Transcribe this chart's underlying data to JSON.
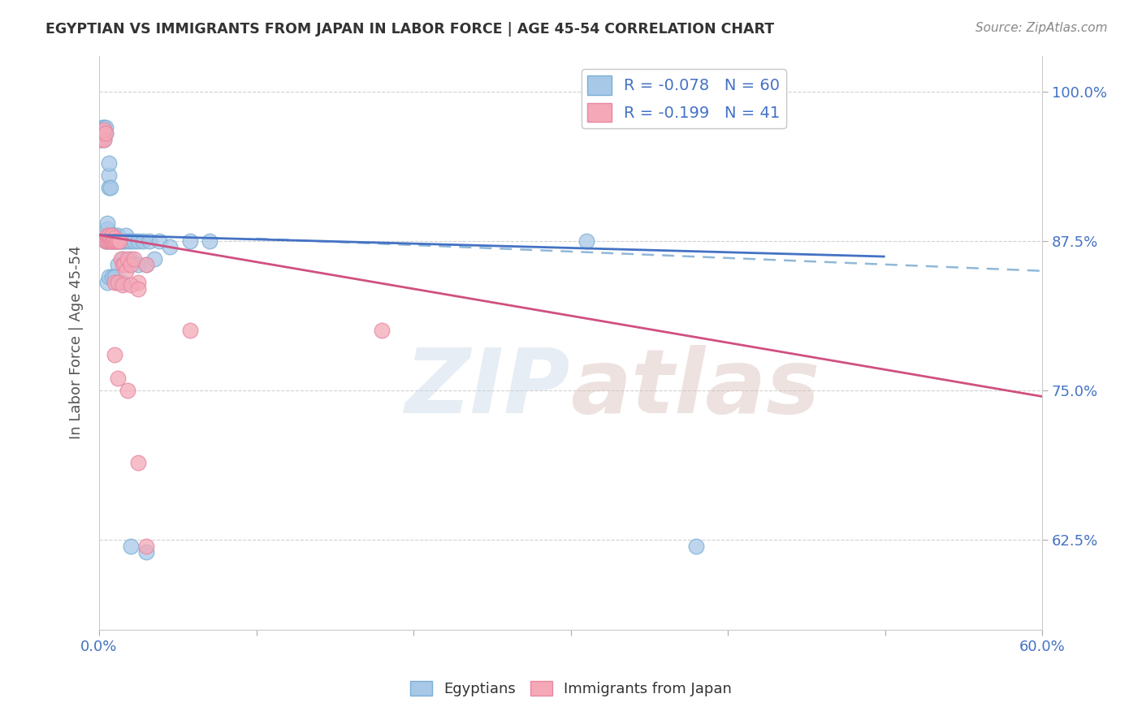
{
  "title": "EGYPTIAN VS IMMIGRANTS FROM JAPAN IN LABOR FORCE | AGE 45-54 CORRELATION CHART",
  "source": "Source: ZipAtlas.com",
  "ylabel": "In Labor Force | Age 45-54",
  "xlim": [
    0.0,
    0.6
  ],
  "ylim": [
    0.55,
    1.03
  ],
  "yticks": [
    0.625,
    0.75,
    0.875,
    1.0
  ],
  "ytick_labels": [
    "62.5%",
    "75.0%",
    "87.5%",
    "100.0%"
  ],
  "xticks": [
    0.0,
    0.1,
    0.2,
    0.3,
    0.4,
    0.5,
    0.6
  ],
  "xtick_labels": [
    "0.0%",
    "",
    "",
    "",
    "",
    "",
    "60.0%"
  ],
  "blue_R": -0.078,
  "blue_N": 60,
  "pink_R": -0.199,
  "pink_N": 41,
  "blue_color": "#a8c8e8",
  "pink_color": "#f4a8b8",
  "blue_edge_color": "#7aafd4",
  "pink_edge_color": "#e888a0",
  "blue_line_color": "#4472c4",
  "pink_line_color": "#d05080",
  "dashed_line_color": "#90b8d8",
  "axis_color": "#4472c4",
  "grid_color": "#cccccc",
  "background_color": "#ffffff",
  "blue_scatter_x": [
    0.001,
    0.002,
    0.002,
    0.003,
    0.003,
    0.003,
    0.004,
    0.004,
    0.004,
    0.005,
    0.005,
    0.005,
    0.005,
    0.006,
    0.006,
    0.006,
    0.007,
    0.007,
    0.007,
    0.008,
    0.008,
    0.009,
    0.009,
    0.01,
    0.01,
    0.011,
    0.012,
    0.012,
    0.013,
    0.014,
    0.015,
    0.016,
    0.017,
    0.018,
    0.02,
    0.022,
    0.025,
    0.028,
    0.032,
    0.038,
    0.012,
    0.015,
    0.018,
    0.02,
    0.025,
    0.03,
    0.035,
    0.045,
    0.058,
    0.07,
    0.005,
    0.006,
    0.008,
    0.01,
    0.012,
    0.015,
    0.02,
    0.03,
    0.31,
    0.38
  ],
  "blue_scatter_y": [
    0.96,
    0.962,
    0.97,
    0.96,
    0.965,
    0.97,
    0.965,
    0.875,
    0.97,
    0.875,
    0.88,
    0.885,
    0.89,
    0.92,
    0.93,
    0.94,
    0.875,
    0.88,
    0.92,
    0.875,
    0.88,
    0.875,
    0.88,
    0.875,
    0.88,
    0.875,
    0.875,
    0.88,
    0.875,
    0.875,
    0.875,
    0.875,
    0.88,
    0.875,
    0.875,
    0.875,
    0.875,
    0.875,
    0.875,
    0.875,
    0.855,
    0.86,
    0.855,
    0.86,
    0.855,
    0.855,
    0.86,
    0.87,
    0.875,
    0.875,
    0.84,
    0.845,
    0.845,
    0.845,
    0.84,
    0.84,
    0.62,
    0.615,
    0.875,
    0.62
  ],
  "pink_scatter_x": [
    0.001,
    0.002,
    0.003,
    0.003,
    0.004,
    0.004,
    0.005,
    0.005,
    0.006,
    0.006,
    0.007,
    0.007,
    0.008,
    0.008,
    0.009,
    0.01,
    0.01,
    0.011,
    0.012,
    0.013,
    0.014,
    0.015,
    0.016,
    0.017,
    0.018,
    0.02,
    0.022,
    0.025,
    0.03,
    0.01,
    0.012,
    0.015,
    0.02,
    0.025,
    0.058,
    0.18,
    0.01,
    0.012,
    0.018,
    0.025,
    0.03
  ],
  "pink_scatter_y": [
    0.96,
    0.965,
    0.96,
    0.968,
    0.875,
    0.965,
    0.875,
    0.88,
    0.875,
    0.88,
    0.875,
    0.878,
    0.875,
    0.88,
    0.875,
    0.875,
    0.878,
    0.875,
    0.875,
    0.875,
    0.86,
    0.855,
    0.855,
    0.85,
    0.86,
    0.855,
    0.86,
    0.84,
    0.855,
    0.84,
    0.84,
    0.838,
    0.838,
    0.835,
    0.8,
    0.8,
    0.78,
    0.76,
    0.75,
    0.69,
    0.62
  ],
  "blue_trend_x0": 0.0,
  "blue_trend_x1": 0.5,
  "blue_trend_y0": 0.88,
  "blue_trend_y1": 0.862,
  "pink_trend_x0": 0.0,
  "pink_trend_x1": 0.6,
  "pink_trend_y0": 0.88,
  "pink_trend_y1": 0.745,
  "dashed_trend_x0": 0.1,
  "dashed_trend_x1": 0.6,
  "dashed_trend_y0": 0.877,
  "dashed_trend_y1": 0.85,
  "watermark_zip": "ZIP",
  "watermark_atlas": "atlas",
  "legend_label_blue": "R = -0.078   N = 60",
  "legend_label_pink": "R = -0.199   N = 41"
}
